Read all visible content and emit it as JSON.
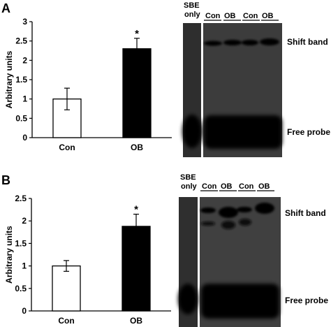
{
  "chart_data": [
    {
      "panel": "A",
      "type": "bar",
      "ylabel": "Arbitrary units",
      "categories": [
        "Con",
        "OB"
      ],
      "values": [
        1.0,
        2.3
      ],
      "errors": [
        0.28,
        0.27
      ],
      "colors": [
        "#ffffff",
        "#000000"
      ],
      "significance": [
        "",
        "*"
      ],
      "ylim": [
        0,
        3
      ],
      "yticks": [
        "0",
        "0.5",
        "1",
        "1.5",
        "2",
        "2.5",
        "3"
      ],
      "blot": {
        "header_top": "SBE",
        "header_bottom": "only",
        "lanes": [
          "Con",
          "OB",
          "Con",
          "OB"
        ],
        "shift_label": "Shift band",
        "free_label": "Free probe"
      }
    },
    {
      "panel": "B",
      "type": "bar",
      "ylabel": "Arbitrary units",
      "categories": [
        "Con",
        "OB"
      ],
      "values": [
        1.0,
        1.88
      ],
      "errors": [
        0.12,
        0.27
      ],
      "colors": [
        "#ffffff",
        "#000000"
      ],
      "significance": [
        "",
        "*"
      ],
      "ylim": [
        0,
        2.5
      ],
      "yticks": [
        "0",
        "0.5",
        "1",
        "1.5",
        "2",
        "2.5"
      ],
      "blot": {
        "header_top": "SBE",
        "header_bottom": "only",
        "lanes": [
          "Con",
          "OB",
          "Con",
          "OB"
        ],
        "shift_label": "Shift band",
        "free_label": "Free probe"
      }
    }
  ]
}
